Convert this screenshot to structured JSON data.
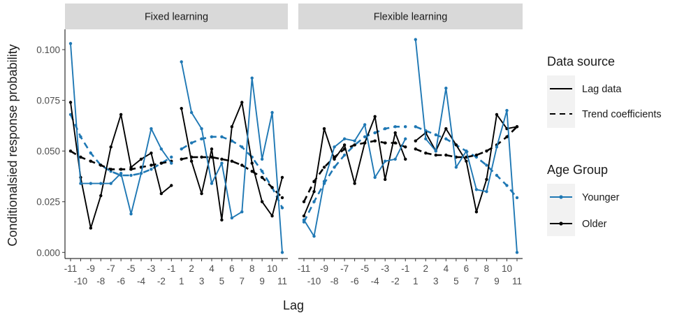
{
  "chart_data": {
    "type": "line",
    "xlabel": "Lag",
    "ylabel": "Conditionalsied response probability",
    "ylim": [
      -0.003,
      0.11
    ],
    "yticks": [
      0.0,
      0.025,
      0.05,
      0.075,
      0.1
    ],
    "ytick_labels": [
      "0.000",
      "0.025",
      "0.050",
      "0.075",
      "0.100"
    ],
    "xticks": [
      -11,
      -10,
      -9,
      -8,
      -7,
      -6,
      -5,
      -4,
      -3,
      -2,
      -1,
      1,
      2,
      3,
      4,
      5,
      6,
      7,
      8,
      9,
      10,
      11
    ],
    "xtick_labels": [
      "-11",
      "-10",
      "-9",
      "-8",
      "-7",
      "-6",
      "-5",
      "-4",
      "-3",
      "-2",
      "-1",
      "1",
      "2",
      "3",
      "4",
      "5",
      "6",
      "7",
      "8",
      "9",
      "10",
      "11"
    ],
    "grid": false,
    "legend_placement": "right",
    "colors": {
      "Younger": "#1f78b4",
      "Older": "#000000",
      "strip_bg": "#d9d9d9"
    },
    "legends": [
      {
        "title": "Data source",
        "entries": [
          {
            "label": "Lag data",
            "linetype": "solid"
          },
          {
            "label": "Trend coefficients",
            "linetype": "dashed"
          }
        ]
      },
      {
        "title": "Age Group",
        "entries": [
          {
            "label": "Younger",
            "color": "#1f78b4"
          },
          {
            "label": "Older",
            "color": "#000000"
          }
        ]
      }
    ],
    "panels": [
      {
        "title": "Fixed learning",
        "lag_data": {
          "Younger": {
            "x": [
              -11,
              -10,
              -9,
              -8,
              -7,
              -6,
              -5,
              -4,
              -3,
              -2,
              -1,
              1,
              2,
              3,
              4,
              5,
              6,
              7,
              8,
              9,
              10,
              11
            ],
            "y": [
              0.103,
              0.034,
              0.034,
              0.034,
              0.034,
              0.039,
              0.019,
              0.039,
              0.061,
              0.051,
              0.044,
              0.094,
              0.069,
              0.061,
              0.034,
              0.044,
              0.017,
              0.02,
              0.086,
              0.046,
              0.069,
              0.0
            ]
          },
          "Older": {
            "x": [
              -11,
              -10,
              -9,
              -8,
              -7,
              -6,
              -5,
              -4,
              -3,
              -2,
              -1,
              1,
              2,
              3,
              4,
              5,
              6,
              7,
              8,
              9,
              10,
              11
            ],
            "y": [
              0.074,
              0.037,
              0.012,
              0.028,
              0.052,
              0.068,
              0.042,
              0.046,
              0.049,
              0.029,
              0.033,
              0.071,
              0.045,
              0.029,
              0.051,
              0.016,
              0.062,
              0.074,
              0.044,
              0.025,
              0.018,
              0.037
            ]
          }
        },
        "trend": {
          "Younger": {
            "x": [
              -11,
              -10,
              -9,
              -8,
              -7,
              -6,
              -5,
              -4,
              -3,
              -2,
              -1,
              1,
              2,
              3,
              4,
              5,
              6,
              7,
              8,
              9,
              10,
              11
            ],
            "y": [
              0.068,
              0.057,
              0.049,
              0.043,
              0.04,
              0.038,
              0.038,
              0.039,
              0.041,
              0.044,
              0.047,
              0.051,
              0.054,
              0.056,
              0.057,
              0.057,
              0.055,
              0.052,
              0.047,
              0.04,
              0.032,
              0.022
            ]
          },
          "Older": {
            "x": [
              -11,
              -10,
              -9,
              -8,
              -7,
              -6,
              -5,
              -4,
              -3,
              -2,
              -1,
              1,
              2,
              3,
              4,
              5,
              6,
              7,
              8,
              9,
              10,
              11
            ],
            "y": [
              0.05,
              0.047,
              0.045,
              0.043,
              0.041,
              0.041,
              0.041,
              0.042,
              0.043,
              0.044,
              0.045,
              0.046,
              0.047,
              0.047,
              0.047,
              0.046,
              0.045,
              0.043,
              0.04,
              0.037,
              0.032,
              0.027
            ]
          }
        }
      },
      {
        "title": "Flexible learning",
        "lag_data": {
          "Younger": {
            "x": [
              -11,
              -10,
              -9,
              -8,
              -7,
              -6,
              -5,
              -4,
              -3,
              -2,
              -1,
              1,
              2,
              3,
              4,
              5,
              6,
              7,
              8,
              9,
              10,
              11
            ],
            "y": [
              0.016,
              0.008,
              0.035,
              0.052,
              0.056,
              0.055,
              0.063,
              0.037,
              0.045,
              0.046,
              0.056,
              0.105,
              0.056,
              0.05,
              0.081,
              0.042,
              0.05,
              0.031,
              0.03,
              0.052,
              0.07,
              0.0
            ]
          },
          "Older": {
            "x": [
              -11,
              -10,
              -9,
              -8,
              -7,
              -6,
              -5,
              -4,
              -3,
              -2,
              -1,
              1,
              2,
              3,
              4,
              5,
              6,
              7,
              8,
              9,
              10,
              11
            ],
            "y": [
              0.018,
              0.03,
              0.061,
              0.046,
              0.053,
              0.034,
              0.054,
              0.067,
              0.036,
              0.059,
              0.046,
              0.055,
              0.059,
              0.05,
              0.061,
              0.053,
              0.045,
              0.02,
              0.036,
              0.068,
              0.061,
              0.062
            ]
          }
        },
        "trend": {
          "Younger": {
            "x": [
              -11,
              -10,
              -9,
              -8,
              -7,
              -6,
              -5,
              -4,
              -3,
              -2,
              -1,
              1,
              2,
              3,
              4,
              5,
              6,
              7,
              8,
              9,
              10,
              11
            ],
            "y": [
              0.015,
              0.025,
              0.034,
              0.042,
              0.048,
              0.053,
              0.057,
              0.059,
              0.061,
              0.062,
              0.062,
              0.062,
              0.06,
              0.058,
              0.056,
              0.053,
              0.05,
              0.047,
              0.043,
              0.038,
              0.033,
              0.027
            ]
          },
          "Older": {
            "x": [
              -11,
              -10,
              -9,
              -8,
              -7,
              -6,
              -5,
              -4,
              -3,
              -2,
              -1,
              1,
              2,
              3,
              4,
              5,
              6,
              7,
              8,
              9,
              10,
              11
            ],
            "y": [
              0.025,
              0.035,
              0.042,
              0.047,
              0.051,
              0.053,
              0.054,
              0.055,
              0.054,
              0.054,
              0.052,
              0.051,
              0.049,
              0.048,
              0.048,
              0.047,
              0.047,
              0.048,
              0.05,
              0.053,
              0.057,
              0.062
            ]
          }
        }
      }
    ]
  }
}
